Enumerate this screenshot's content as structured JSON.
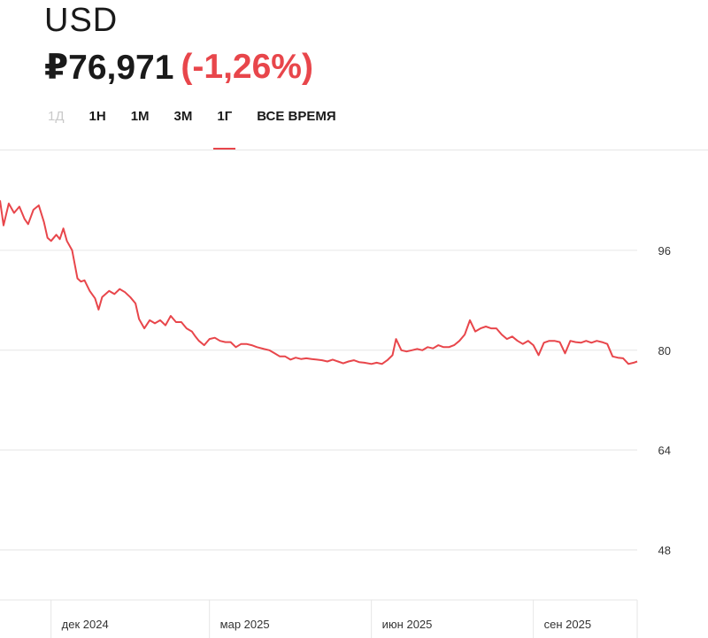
{
  "header": {
    "title": "USD",
    "price": "₽76,971",
    "change": "(-1,26%)"
  },
  "tabs": [
    {
      "label": "1Д",
      "state": "disabled"
    },
    {
      "label": "1Н",
      "state": "normal"
    },
    {
      "label": "1М",
      "state": "normal"
    },
    {
      "label": "3М",
      "state": "normal"
    },
    {
      "label": "1Г",
      "state": "active"
    },
    {
      "label": "ВСЕ ВРЕМЯ",
      "state": "normal"
    }
  ],
  "colors": {
    "line": "#e8464b",
    "accent": "#e8464b",
    "grid": "#e6e6e6"
  },
  "chart_data": {
    "type": "line",
    "title": "",
    "xlabel": "",
    "ylabel": "",
    "ylim": [
      40,
      112
    ],
    "y_ticks": [
      96,
      80,
      64,
      48
    ],
    "y_tick_labels": [
      "96",
      "80",
      "64",
      "48"
    ],
    "x_ticks": [
      {
        "label": "дек 2024",
        "date": "2024-12-01"
      },
      {
        "label": "мар 2025",
        "date": "2025-03-01"
      },
      {
        "label": "июн 2025",
        "date": "2025-06-01"
      },
      {
        "label": "сен 2025",
        "date": "2025-09-01"
      }
    ],
    "xlim": [
      "2024-11-02",
      "2025-10-30"
    ],
    "y_axis_position": "right",
    "grid": true,
    "series": [
      {
        "values": [
          [
            "2024-11-02",
            104.0
          ],
          [
            "2024-11-04",
            100.0
          ],
          [
            "2024-11-07",
            103.5
          ],
          [
            "2024-11-10",
            102.0
          ],
          [
            "2024-11-13",
            103.0
          ],
          [
            "2024-11-16",
            101.0
          ],
          [
            "2024-11-18",
            100.2
          ],
          [
            "2024-11-21",
            102.5
          ],
          [
            "2024-11-24",
            103.2
          ],
          [
            "2024-11-27",
            100.5
          ],
          [
            "2024-11-29",
            98.0
          ],
          [
            "2024-12-01",
            97.5
          ],
          [
            "2024-12-04",
            98.5
          ],
          [
            "2024-12-06",
            97.8
          ],
          [
            "2024-12-08",
            99.5
          ],
          [
            "2024-12-10",
            97.5
          ],
          [
            "2024-12-13",
            96.0
          ],
          [
            "2024-12-16",
            91.5
          ],
          [
            "2024-12-18",
            91.0
          ],
          [
            "2024-12-20",
            91.2
          ],
          [
            "2024-12-23",
            89.5
          ],
          [
            "2024-12-26",
            88.3
          ],
          [
            "2024-12-28",
            86.5
          ],
          [
            "2024-12-30",
            88.5
          ],
          [
            "2025-01-03",
            89.5
          ],
          [
            "2025-01-06",
            89.0
          ],
          [
            "2025-01-09",
            89.8
          ],
          [
            "2025-01-12",
            89.3
          ],
          [
            "2025-01-15",
            88.5
          ],
          [
            "2025-01-18",
            87.5
          ],
          [
            "2025-01-20",
            85.0
          ],
          [
            "2025-01-23",
            83.5
          ],
          [
            "2025-01-26",
            84.8
          ],
          [
            "2025-01-29",
            84.3
          ],
          [
            "2025-02-01",
            84.8
          ],
          [
            "2025-02-04",
            84.0
          ],
          [
            "2025-02-07",
            85.5
          ],
          [
            "2025-02-10",
            84.5
          ],
          [
            "2025-02-13",
            84.5
          ],
          [
            "2025-02-16",
            83.5
          ],
          [
            "2025-02-19",
            83.0
          ],
          [
            "2025-02-21",
            82.2
          ],
          [
            "2025-02-23",
            81.5
          ],
          [
            "2025-02-26",
            80.8
          ],
          [
            "2025-03-01",
            81.8
          ],
          [
            "2025-03-04",
            82.0
          ],
          [
            "2025-03-07",
            81.5
          ],
          [
            "2025-03-10",
            81.3
          ],
          [
            "2025-03-13",
            81.3
          ],
          [
            "2025-03-16",
            80.5
          ],
          [
            "2025-03-19",
            81.0
          ],
          [
            "2025-03-22",
            81.0
          ],
          [
            "2025-03-25",
            80.8
          ],
          [
            "2025-03-28",
            80.5
          ],
          [
            "2025-04-01",
            80.2
          ],
          [
            "2025-04-04",
            80.0
          ],
          [
            "2025-04-07",
            79.5
          ],
          [
            "2025-04-10",
            79.0
          ],
          [
            "2025-04-13",
            79.0
          ],
          [
            "2025-04-16",
            78.5
          ],
          [
            "2025-04-19",
            78.8
          ],
          [
            "2025-04-22",
            78.6
          ],
          [
            "2025-04-25",
            78.7
          ],
          [
            "2025-04-28",
            78.6
          ],
          [
            "2025-05-01",
            78.5
          ],
          [
            "2025-05-04",
            78.4
          ],
          [
            "2025-05-07",
            78.2
          ],
          [
            "2025-05-10",
            78.5
          ],
          [
            "2025-05-13",
            78.2
          ],
          [
            "2025-05-16",
            77.9
          ],
          [
            "2025-05-19",
            78.2
          ],
          [
            "2025-05-22",
            78.4
          ],
          [
            "2025-05-25",
            78.1
          ],
          [
            "2025-05-28",
            78.0
          ],
          [
            "2025-06-01",
            77.8
          ],
          [
            "2025-06-04",
            78.0
          ],
          [
            "2025-06-07",
            77.8
          ],
          [
            "2025-06-10",
            78.4
          ],
          [
            "2025-06-13",
            79.2
          ],
          [
            "2025-06-15",
            81.8
          ],
          [
            "2025-06-18",
            80.0
          ],
          [
            "2025-06-21",
            79.8
          ],
          [
            "2025-06-24",
            80.0
          ],
          [
            "2025-06-27",
            80.2
          ],
          [
            "2025-06-30",
            80.0
          ],
          [
            "2025-07-03",
            80.5
          ],
          [
            "2025-07-06",
            80.3
          ],
          [
            "2025-07-09",
            80.8
          ],
          [
            "2025-07-12",
            80.5
          ],
          [
            "2025-07-15",
            80.5
          ],
          [
            "2025-07-18",
            80.8
          ],
          [
            "2025-07-21",
            81.5
          ],
          [
            "2025-07-24",
            82.5
          ],
          [
            "2025-07-27",
            84.8
          ],
          [
            "2025-07-30",
            83.0
          ],
          [
            "2025-08-02",
            83.5
          ],
          [
            "2025-08-05",
            83.8
          ],
          [
            "2025-08-08",
            83.5
          ],
          [
            "2025-08-11",
            83.5
          ],
          [
            "2025-08-14",
            82.5
          ],
          [
            "2025-08-17",
            81.8
          ],
          [
            "2025-08-20",
            82.2
          ],
          [
            "2025-08-23",
            81.5
          ],
          [
            "2025-08-26",
            81.0
          ],
          [
            "2025-08-29",
            81.5
          ],
          [
            "2025-09-01",
            80.8
          ],
          [
            "2025-09-04",
            79.2
          ],
          [
            "2025-09-07",
            81.2
          ],
          [
            "2025-09-10",
            81.5
          ],
          [
            "2025-09-13",
            81.5
          ],
          [
            "2025-09-16",
            81.3
          ],
          [
            "2025-09-19",
            79.5
          ],
          [
            "2025-09-22",
            81.5
          ],
          [
            "2025-09-25",
            81.3
          ],
          [
            "2025-09-28",
            81.2
          ],
          [
            "2025-10-01",
            81.5
          ],
          [
            "2025-10-04",
            81.2
          ],
          [
            "2025-10-07",
            81.5
          ],
          [
            "2025-10-10",
            81.3
          ],
          [
            "2025-10-13",
            81.0
          ],
          [
            "2025-10-16",
            79.0
          ],
          [
            "2025-10-19",
            78.8
          ],
          [
            "2025-10-22",
            78.7
          ],
          [
            "2025-10-25",
            77.8
          ],
          [
            "2025-10-28",
            78.0
          ],
          [
            "2025-10-30",
            78.2
          ]
        ]
      }
    ]
  }
}
